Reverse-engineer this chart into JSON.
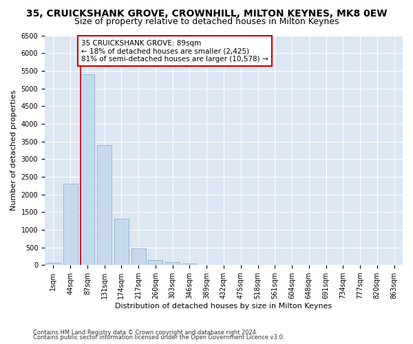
{
  "title": "35, CRUICKSHANK GROVE, CROWNHILL, MILTON KEYNES, MK8 0EW",
  "subtitle": "Size of property relative to detached houses in Milton Keynes",
  "xlabel": "Distribution of detached houses by size in Milton Keynes",
  "ylabel": "Number of detached properties",
  "footnote1": "Contains HM Land Registry data © Crown copyright and database right 2024.",
  "footnote2": "Contains public sector information licensed under the Open Government Licence v3.0.",
  "categories": [
    "1sqm",
    "44sqm",
    "87sqm",
    "131sqm",
    "174sqm",
    "217sqm",
    "260sqm",
    "303sqm",
    "346sqm",
    "389sqm",
    "432sqm",
    "475sqm",
    "518sqm",
    "561sqm",
    "604sqm",
    "648sqm",
    "691sqm",
    "734sqm",
    "777sqm",
    "820sqm",
    "863sqm"
  ],
  "values": [
    60,
    2300,
    5400,
    3400,
    1300,
    480,
    150,
    80,
    40,
    10,
    5,
    3,
    2,
    1,
    0,
    0,
    0,
    0,
    0,
    0,
    0
  ],
  "bar_color": "#c6d9ec",
  "bar_edge_color": "#8aaecb",
  "vline_color": "#cc0000",
  "vline_x_idx": 2,
  "annotation_text": "35 CRUICKSHANK GROVE: 89sqm\n← 18% of detached houses are smaller (2,425)\n81% of semi-detached houses are larger (10,578) →",
  "annotation_box_edgecolor": "#cc0000",
  "ylim": [
    0,
    6500
  ],
  "yticks": [
    0,
    500,
    1000,
    1500,
    2000,
    2500,
    3000,
    3500,
    4000,
    4500,
    5000,
    5500,
    6000,
    6500
  ],
  "plot_bg_color": "#dce7f3",
  "grid_color": "#ffffff",
  "title_fontsize": 10,
  "subtitle_fontsize": 9,
  "axis_fontsize": 8,
  "tick_fontsize": 7,
  "footnote_fontsize": 6
}
